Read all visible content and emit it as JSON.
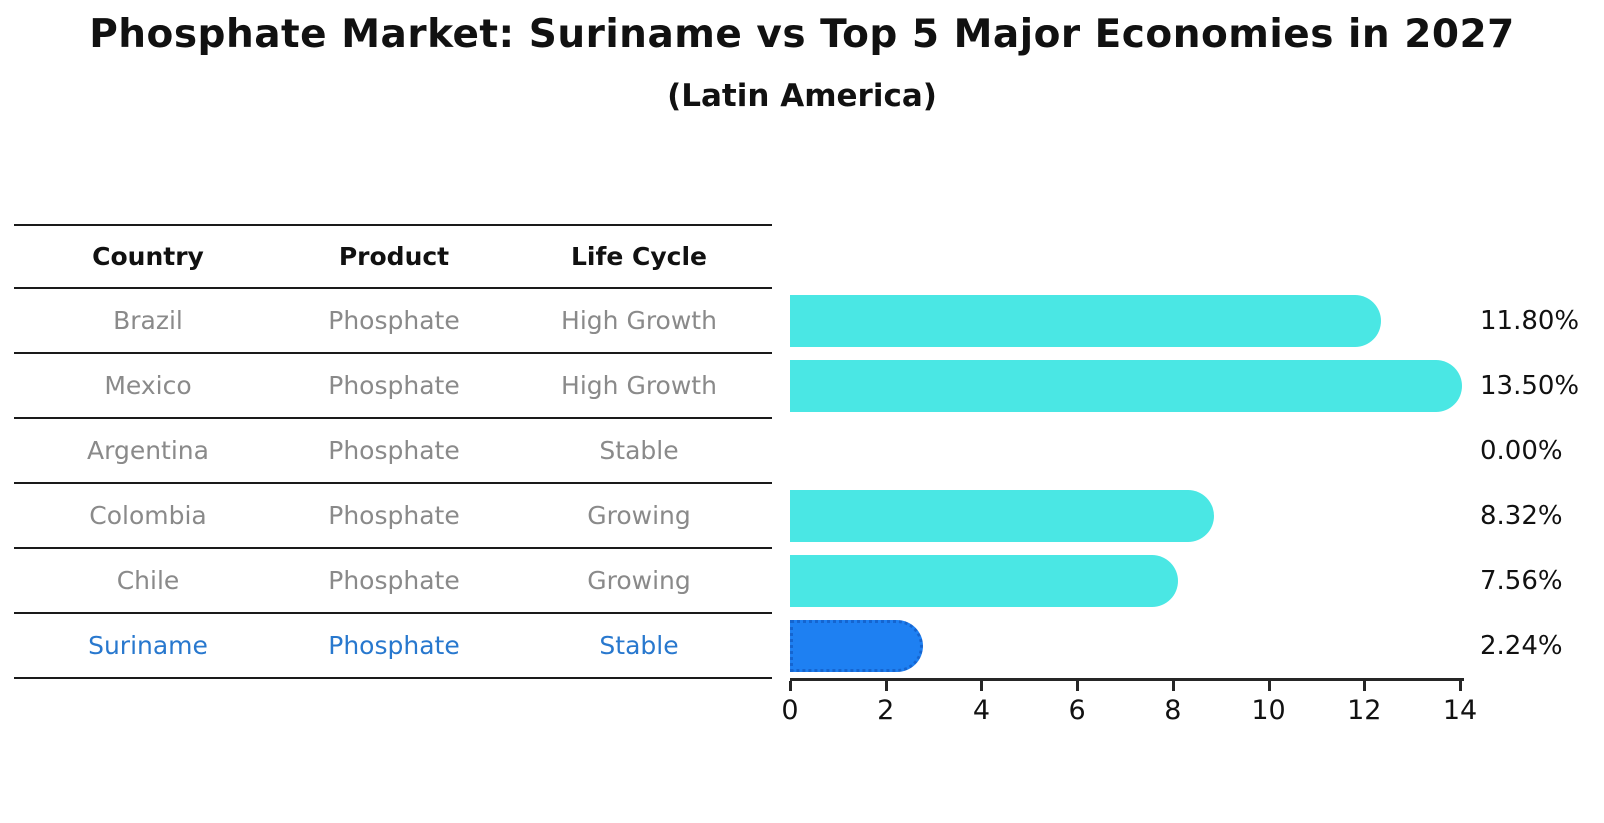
{
  "title": "Phosphate Market: Suriname vs Top 5 Major Economies in 2027",
  "subtitle": "(Latin America)",
  "table": {
    "headers": [
      "Country",
      "Product",
      "Life Cycle"
    ],
    "rows": [
      {
        "country": "Brazil",
        "product": "Phosphate",
        "life_cycle": "High Growth"
      },
      {
        "country": "Mexico",
        "product": "Phosphate",
        "life_cycle": "High Growth"
      },
      {
        "country": "Argentina",
        "product": "Phosphate",
        "life_cycle": "Stable"
      },
      {
        "country": "Colombia",
        "product": "Phosphate",
        "life_cycle": "Growing"
      },
      {
        "country": "Chile",
        "product": "Phosphate",
        "life_cycle": "Growing"
      },
      {
        "country": "Suriname",
        "product": "Phosphate",
        "life_cycle": "Stable"
      }
    ]
  },
  "chart_data": {
    "type": "bar",
    "orientation": "horizontal",
    "title": "Phosphate Market: Suriname vs Top 5 Major Economies in 2027",
    "subtitle": "(Latin America)",
    "categories": [
      "Brazil",
      "Mexico",
      "Argentina",
      "Colombia",
      "Chile",
      "Suriname"
    ],
    "values": [
      11.8,
      13.5,
      0.0,
      8.32,
      7.56,
      2.24
    ],
    "value_labels": [
      "11.80%",
      "13.50%",
      "0.00%",
      "8.32%",
      "7.56%",
      "2.24%"
    ],
    "x_ticks": [
      "0",
      "2",
      "4",
      "6",
      "8",
      "10",
      "12",
      "14"
    ],
    "xlim": [
      0,
      14
    ],
    "grid": false,
    "legend": false,
    "bar_color": "#4ae7e4",
    "highlight_color": "#1e80f2",
    "highlight_index": 5,
    "highlight_text_color": "#2878ce"
  }
}
